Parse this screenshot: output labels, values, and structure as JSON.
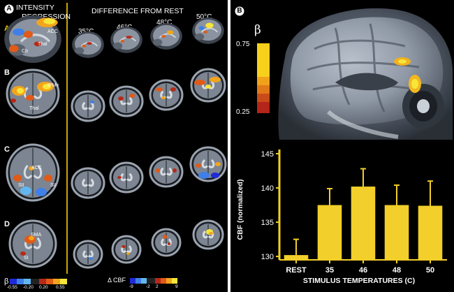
{
  "panel_a": {
    "letter": "A",
    "title_line1": "INTENSITY",
    "title_line2": "REGRESSION",
    "difference_title": "DIFFERENCE FROM REST",
    "temps": [
      "35°C",
      "46°C",
      "48°C",
      "50°C"
    ],
    "rows": [
      "A",
      "B",
      "C",
      "D"
    ],
    "labels": {
      "acc_a": "ACC",
      "thal_a": "Thal",
      "cb": "Cb",
      "ipmv": "IPMv",
      "thal_b": "Thal",
      "acc_c": "ACC",
      "sii_left": "SII",
      "sii_right": "SII",
      "sma": "SMA",
      "si": "SI"
    },
    "beta_scale": {
      "label": "β",
      "ticks": [
        "-0.55",
        "-0.20",
        "0.20",
        "0.55"
      ]
    },
    "cbf_scale": {
      "label": "Δ CBF",
      "ticks": [
        "-9",
        "-2",
        "2",
        "9"
      ]
    },
    "colors": {
      "divider": "#c9a400",
      "row_a_letter": "#e8c400"
    }
  },
  "panel_b": {
    "letter": "B",
    "beta_label": "β",
    "beta_ticks": [
      "0.75",
      "0.25"
    ]
  },
  "chart_data": {
    "type": "bar",
    "categories": [
      "REST",
      "35",
      "46",
      "48",
      "50"
    ],
    "values": [
      130.2,
      137.5,
      140.2,
      137.5,
      137.4
    ],
    "errors": [
      2.3,
      2.4,
      2.6,
      2.9,
      3.6
    ],
    "xlabel": "STIMULUS TEMPERATURES (C)",
    "ylabel": "CBF (normalized)",
    "ylim": [
      129.5,
      145
    ],
    "yticks": [
      130,
      135,
      140,
      145
    ],
    "bar_color": "#f2cf2a",
    "axis_color": "#f2cf2a"
  }
}
